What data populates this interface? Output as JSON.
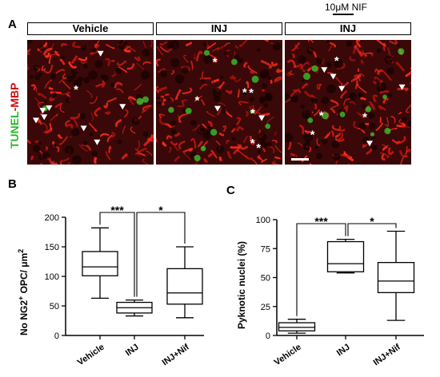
{
  "panel_a": {
    "letter": "A",
    "drug_label": "10μM NIF",
    "conditions": [
      "Vehicle",
      "INJ",
      "INJ"
    ],
    "stain_green": "TUNEL",
    "stain_sep": "-",
    "stain_red": "MBP",
    "markers": [
      {
        "arrows": 8,
        "asterisks": 1
      },
      {
        "arrows": 2,
        "asterisks": 7
      },
      {
        "arrows": 5,
        "asterisks": 4
      }
    ]
  },
  "panel_b": {
    "letter": "B",
    "ylabel_prefix": "No NG2",
    "ylabel_sup": "+",
    "ylabel_suffix": " OPC/ μm",
    "ylabel_sup2": "2"
  },
  "panel_c": {
    "letter": "C",
    "ylabel": "Pyknotic nuclei (%)"
  },
  "chart_data": [
    {
      "type": "boxplot",
      "categories": [
        "Vehicle",
        "INJ",
        "INJ+Nif"
      ],
      "ylim": [
        0,
        200
      ],
      "yticks": [
        0,
        50,
        100,
        150,
        200
      ],
      "ylabel": "No NG2+ OPC/ μm2",
      "boxes": [
        {
          "min": 63,
          "q1": 101,
          "median": 116,
          "q3": 142,
          "max": 182
        },
        {
          "min": 33,
          "q1": 38,
          "median": 47,
          "q3": 56,
          "max": 60
        },
        {
          "min": 30,
          "q1": 53,
          "median": 72,
          "q3": 113,
          "max": 150
        }
      ],
      "significance": [
        {
          "from": 0,
          "to": 1,
          "label": "***"
        },
        {
          "from": 1,
          "to": 2,
          "label": "*"
        }
      ]
    },
    {
      "type": "boxplot",
      "categories": [
        "Vehicle",
        "INJ",
        "INJ+Nif"
      ],
      "ylim": [
        0,
        100
      ],
      "yticks": [
        0,
        25,
        50,
        75,
        100
      ],
      "ylabel": "Pyknotic nuclei (%)",
      "boxes": [
        {
          "min": 2,
          "q1": 4,
          "median": 7,
          "q3": 11,
          "max": 14
        },
        {
          "min": 54,
          "q1": 55,
          "median": 62,
          "q3": 81,
          "max": 83
        },
        {
          "min": 13,
          "q1": 37,
          "median": 47,
          "q3": 63,
          "max": 90
        }
      ],
      "significance": [
        {
          "from": 0,
          "to": 1,
          "label": "***"
        },
        {
          "from": 1,
          "to": 2,
          "label": "*"
        }
      ]
    }
  ]
}
